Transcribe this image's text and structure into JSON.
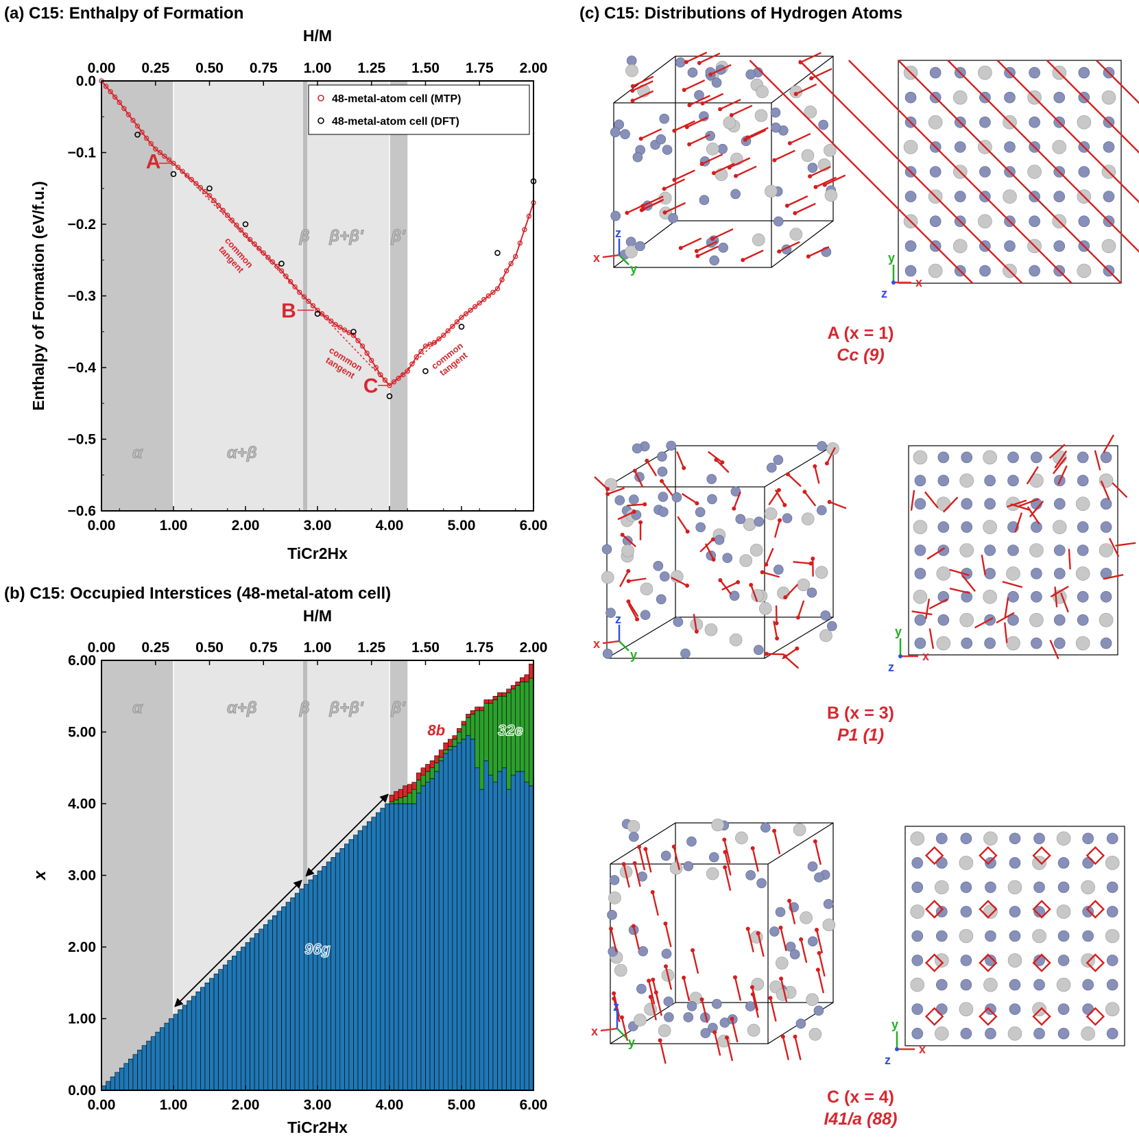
{
  "panels": {
    "a_title": "(a) C15: Enthalpy of Formation",
    "b_title": "(b) C15: Occupied Interstices (48-metal-atom cell)",
    "c_title": "(c) C15: Distributions of Hydrogen Atoms"
  },
  "structures": {
    "a_label": "A (x = 1)",
    "a_group": "Cc (9)",
    "b_label": "B (x = 3)",
    "b_group": "P1 (1)",
    "c_label": "C (x = 4)",
    "c_group": "I41/a (88)"
  },
  "colors": {
    "mtp": "#d6282f",
    "dft": "#000000",
    "g96": "#1f77b4",
    "e32": "#2ca02c",
    "b8": "#d62728",
    "metal_grey": "#c8c8c8",
    "metal_blue": "#8790b8"
  },
  "chart_data": [
    {
      "type": "line",
      "title": "(a) C15: Enthalpy of Formation",
      "xlabel": "TiCr2Hx",
      "ylabel": "Enthalpy of Formation (eV/f.u.)",
      "x2label": "H/M",
      "xlim": [
        0,
        6
      ],
      "ylim": [
        -0.6,
        0
      ],
      "x_ticks": [
        "0.00",
        "1.00",
        "2.00",
        "3.00",
        "4.00",
        "5.00",
        "6.00"
      ],
      "y_ticks": [
        "0.0",
        "−0.1",
        "−0.2",
        "−0.3",
        "−0.4",
        "−0.5",
        "−0.6"
      ],
      "x2_ticks": [
        "0.00",
        "0.25",
        "0.50",
        "0.75",
        "1.00",
        "1.25",
        "1.50",
        "1.75",
        "2.00"
      ],
      "legend": [
        "48-metal-atom cell (MTP)",
        "48-metal-atom cell (DFT)"
      ],
      "legend_position": "top-right",
      "phase_regions": [
        {
          "label": "α",
          "from": 0,
          "to": 1.0
        },
        {
          "label": "α+β",
          "from": 1.0,
          "to": 2.8
        },
        {
          "label": "β",
          "from": 2.8,
          "to": 2.85
        },
        {
          "label": "β+β'",
          "from": 2.85,
          "to": 4.0
        },
        {
          "label": "β'",
          "from": 4.0,
          "to": 4.25
        }
      ],
      "points_labels": [
        "A",
        "B",
        "C"
      ],
      "tangent_label": "common tangent",
      "mtp_x": [
        0,
        0.125,
        0.25,
        0.375,
        0.5,
        0.625,
        0.75,
        0.875,
        1.0,
        1.5,
        2.0,
        2.5,
        2.75,
        3.0,
        3.25,
        3.5,
        3.625,
        3.75,
        3.875,
        4.0,
        4.125,
        4.25,
        4.375,
        4.5,
        4.625,
        4.75,
        5.0,
        5.25,
        5.5,
        5.625,
        5.75,
        6.0
      ],
      "mtp_y": [
        0,
        -0.015,
        -0.03,
        -0.047,
        -0.063,
        -0.08,
        -0.095,
        -0.105,
        -0.115,
        -0.16,
        -0.215,
        -0.265,
        -0.295,
        -0.32,
        -0.34,
        -0.355,
        -0.37,
        -0.39,
        -0.41,
        -0.425,
        -0.415,
        -0.405,
        -0.385,
        -0.37,
        -0.365,
        -0.355,
        -0.33,
        -0.31,
        -0.29,
        -0.265,
        -0.245,
        -0.17
      ],
      "dft_x": [
        0.5,
        1.0,
        1.5,
        2.0,
        2.5,
        3.0,
        3.5,
        4.0,
        4.5,
        5.0,
        5.5,
        6.0
      ],
      "dft_y": [
        -0.075,
        -0.13,
        -0.15,
        -0.2,
        -0.255,
        -0.325,
        -0.35,
        -0.44,
        -0.405,
        -0.343,
        -0.24,
        -0.14
      ]
    },
    {
      "type": "bar",
      "title": "(b) C15: Occupied Interstices (48-metal-atom cell)",
      "xlabel": "TiCr2Hx",
      "ylabel": "x",
      "x2label": "H/M",
      "xlim": [
        0,
        6
      ],
      "ylim": [
        0,
        6
      ],
      "x_ticks": [
        "0.00",
        "1.00",
        "2.00",
        "3.00",
        "4.00",
        "5.00",
        "6.00"
      ],
      "y_ticks": [
        "0.00",
        "1.00",
        "2.00",
        "3.00",
        "4.00",
        "5.00",
        "6.00"
      ],
      "x2_ticks": [
        "0.00",
        "0.25",
        "0.50",
        "0.75",
        "1.00",
        "1.25",
        "1.50",
        "1.75",
        "2.00"
      ],
      "series_names": [
        "96g",
        "32e",
        "8b"
      ],
      "bar_step": 0.0625,
      "phase_labels": [
        "α",
        "α+β",
        "β",
        "β+β'",
        "β'"
      ],
      "g96_after4": [
        4.0,
        4.0,
        4.0,
        4.0,
        4.0,
        4.0,
        4.0,
        4.15,
        4.25,
        4.3,
        4.35,
        4.45,
        4.6,
        4.7,
        4.75,
        4.8,
        4.85,
        4.9,
        4.95,
        4.9,
        4.5,
        4.2,
        4.6,
        4.4,
        4.3,
        4.45,
        4.5,
        4.2,
        4.4,
        4.45,
        4.45,
        4.3,
        4.25
      ],
      "e32_after4": [
        0,
        0.03,
        0.05,
        0.08,
        0.1,
        0.15,
        0.2,
        0.18,
        0.15,
        0.15,
        0.15,
        0.12,
        0.05,
        0.05,
        0.05,
        0.1,
        0.15,
        0.2,
        0.25,
        0.35,
        0.8,
        1.1,
        0.8,
        1.0,
        1.15,
        1.05,
        1.0,
        1.35,
        1.2,
        1.2,
        1.25,
        1.4,
        1.5
      ],
      "b8_after4": [
        0.06,
        0.09,
        0.12,
        0.12,
        0.15,
        0.12,
        0.1,
        0.1,
        0.1,
        0.1,
        0.1,
        0.1,
        0.1,
        0.1,
        0.1,
        0.05,
        0.05,
        0.05,
        0.05,
        0.05,
        0.05,
        0.05,
        0.05,
        0.05,
        0.05,
        0.05,
        0.05,
        0.05,
        0.05,
        0.05,
        0.06,
        0.1,
        0.2
      ]
    }
  ]
}
